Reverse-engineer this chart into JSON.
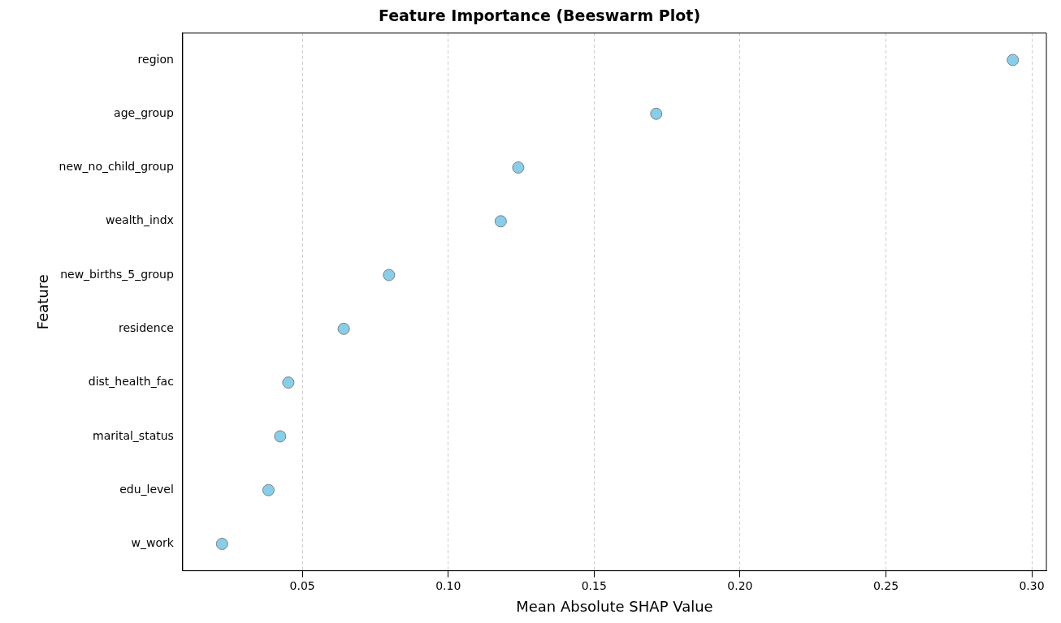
{
  "chart_data": {
    "type": "scatter",
    "orientation": "horizontal",
    "title": "Feature Importance (Beeswarm Plot)",
    "xlabel": "Mean Absolute SHAP Value",
    "ylabel": "Feature",
    "categories": [
      "region",
      "age_group",
      "new_no_child_group",
      "wealth_indx",
      "new_births_5_group",
      "residence",
      "dist_health_fac",
      "marital_status",
      "edu_level",
      "w_work"
    ],
    "values": [
      0.2935,
      0.1713,
      0.124,
      0.118,
      0.0797,
      0.0642,
      0.0452,
      0.0424,
      0.0384,
      0.0225
    ],
    "color": "#87ceeb",
    "marker": "circle",
    "grid": "x",
    "xlim": [
      0.009,
      0.305
    ],
    "xticks": [
      0.05,
      {
        "value": 0.1,
        "label": "0.10"
      },
      0.15,
      {
        "value": 0.2,
        "label": "0.20"
      },
      0.25,
      {
        "value": 0.3,
        "label": "0.30"
      }
    ]
  }
}
